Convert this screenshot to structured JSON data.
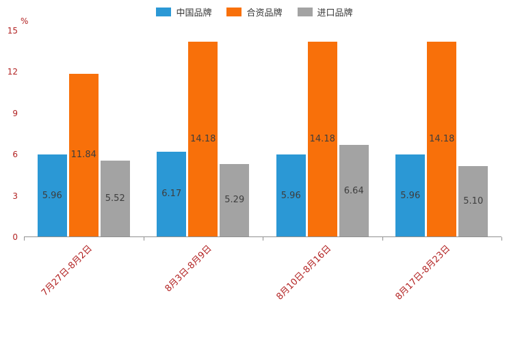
{
  "chart_data": {
    "type": "bar",
    "title": "",
    "xlabel": "",
    "ylabel": "%",
    "ylim": [
      0,
      15
    ],
    "yticks": [
      0,
      3,
      6,
      9,
      12,
      15
    ],
    "grid": false,
    "legend_position": "top",
    "value_labels": true,
    "categories": [
      "7月27日-8月2日",
      "8月3日-8月9日",
      "8月10日-8月16日",
      "8月17日-8月23日"
    ],
    "series": [
      {
        "name": "中国品牌",
        "color": "#2b98d5",
        "values": [
          5.96,
          6.17,
          5.96,
          5.96
        ]
      },
      {
        "name": "合资品牌",
        "color": "#f8700a",
        "values": [
          11.84,
          14.18,
          14.18,
          14.18
        ]
      },
      {
        "name": "进口品牌",
        "color": "#a3a3a3",
        "values": [
          5.52,
          5.29,
          6.64,
          5.1
        ]
      }
    ]
  },
  "colors": {
    "axis_label": "#b22222",
    "bar_label": "#3d3d3d",
    "axis_line": "#8f8f8f",
    "background": "#ffffff"
  }
}
